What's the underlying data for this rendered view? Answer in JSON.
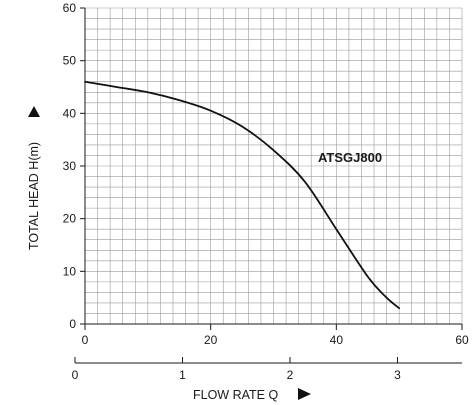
{
  "chart_data": {
    "type": "line",
    "title": "",
    "xlabel": "FLOW RATE Q",
    "ylabel": "TOTAL HEAD H(m)",
    "xlim": [
      0,
      60
    ],
    "ylim": [
      0,
      60
    ],
    "x_ticks": [
      "0",
      "20",
      "40",
      "60"
    ],
    "y_ticks": [
      "0",
      "10",
      "20",
      "30",
      "40",
      "50",
      "60"
    ],
    "secondary_x": {
      "lim": [
        0,
        3.6
      ],
      "ticks": [
        "0",
        "1",
        "2",
        "3"
      ]
    },
    "grid": true,
    "series": [
      {
        "name": "ATSGJ800",
        "x": [
          0,
          5,
          10,
          15,
          20,
          25,
          30,
          35,
          40,
          45,
          48,
          50
        ],
        "y": [
          46,
          45,
          44,
          42.5,
          40.5,
          37.5,
          33,
          27,
          18,
          9,
          5,
          3
        ],
        "color": "#111111"
      }
    ]
  }
}
